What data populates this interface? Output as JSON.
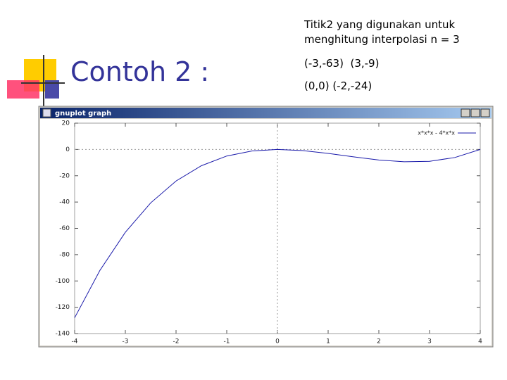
{
  "slide": {
    "title": "Contoh 2 :",
    "notes": [
      "Titik2 yang digunakan untuk",
      "menghitung interpolasi n = 3"
    ],
    "points": [
      "(-3,-63)  (3,-9)",
      "(0,0) (-2,-24)"
    ]
  },
  "window": {
    "title": "gnuplot graph"
  },
  "chart_data": {
    "type": "line",
    "x": [
      -4,
      -3.5,
      -3,
      -2.5,
      -2,
      -1.5,
      -1,
      -0.5,
      0,
      0.5,
      1,
      1.5,
      2,
      2.5,
      3,
      3.5,
      4
    ],
    "series": [
      {
        "name": "x*x*x - 4*x*x",
        "color": "#1a1aaa",
        "values": [
          -128,
          -91.875,
          -63,
          -40.625,
          -24,
          -12.375,
          -5,
          -1.125,
          0,
          -0.875,
          -3,
          -5.625,
          -8,
          -9.375,
          -9,
          -6.125,
          0
        ]
      }
    ],
    "xlim": [
      -4,
      4
    ],
    "xticks": [
      -4,
      -3,
      -2,
      -1,
      0,
      1,
      2,
      3,
      4
    ],
    "ylim": [
      -140,
      20
    ],
    "yticks": [
      20,
      0,
      -20,
      -40,
      -60,
      -80,
      -100,
      -120,
      -140
    ],
    "grid": false,
    "zero_axes": true,
    "legend": "top-right"
  }
}
